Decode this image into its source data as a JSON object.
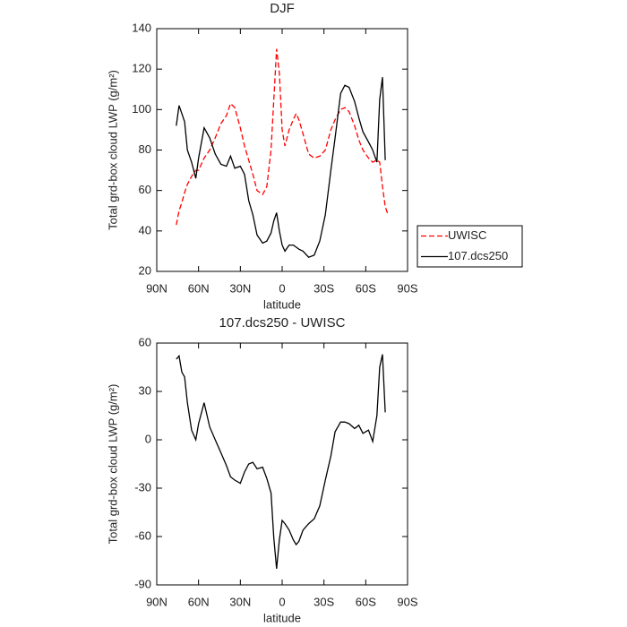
{
  "chart_data": [
    {
      "type": "line",
      "title": "DJF",
      "xlabel": "latitude",
      "ylabel": "Total grd-box cloud LWP (g/m²)",
      "x": [
        76,
        74,
        72,
        70,
        68,
        65,
        62,
        60,
        56,
        52,
        48,
        44,
        40,
        37,
        34,
        30,
        27,
        24,
        21,
        18,
        14,
        11,
        8,
        6,
        4,
        2,
        0,
        -2,
        -5,
        -8,
        -10,
        -12,
        -15,
        -19,
        -23,
        -27,
        -31,
        -35,
        -38,
        -42,
        -45,
        -48,
        -52,
        -55,
        -58,
        -62,
        -65,
        -68,
        -70,
        -72,
        -74,
        -76
      ],
      "series": [
        {
          "name": "UWISC",
          "color": "#ff0000",
          "dashed": true,
          "values": [
            43,
            50,
            54,
            59,
            63,
            67,
            70,
            70,
            76,
            80,
            86,
            93,
            97,
            103,
            101,
            91,
            82,
            75,
            68,
            60,
            58,
            62,
            80,
            105,
            130,
            118,
            90,
            82,
            90,
            95,
            98,
            95,
            88,
            78,
            76,
            77,
            80,
            90,
            95,
            100,
            101,
            99,
            92,
            85,
            80,
            76,
            74,
            75,
            74,
            62,
            52,
            48
          ]
        },
        {
          "name": "107.dcs250",
          "color": "#000000",
          "dashed": false,
          "values": [
            92,
            102,
            98,
            94,
            80,
            74,
            66,
            76,
            91,
            86,
            78,
            73,
            72,
            77,
            71,
            72,
            68,
            55,
            48,
            38,
            34,
            35,
            39,
            45,
            49,
            40,
            33,
            30,
            33,
            33,
            32,
            31,
            30,
            27,
            28,
            35,
            48,
            70,
            86,
            108,
            112,
            111,
            104,
            96,
            89,
            84,
            80,
            74,
            105,
            116,
            75,
            null
          ]
        }
      ],
      "xlim": [
        90,
        -90
      ],
      "xticks": [
        {
          "value": 90,
          "label": "90N"
        },
        {
          "value": 60,
          "label": "60N"
        },
        {
          "value": 30,
          "label": "30N"
        },
        0,
        {
          "value": -30,
          "label": "30S"
        },
        {
          "value": -60,
          "label": "60S"
        },
        {
          "value": -90,
          "label": "90S"
        }
      ],
      "ylim": [
        20,
        140
      ],
      "yticks": [
        20,
        40,
        60,
        80,
        100,
        120,
        140
      ],
      "legend": "right"
    },
    {
      "type": "line",
      "title": "107.dcs250 - UWISC",
      "xlabel": "latitude",
      "ylabel": "Total grd-box cloud LWP (g/m²)",
      "x": [
        76,
        74,
        72,
        70,
        68,
        65,
        62,
        60,
        56,
        52,
        48,
        44,
        40,
        37,
        34,
        30,
        27,
        24,
        21,
        18,
        14,
        11,
        8,
        6,
        4,
        2,
        0,
        -2,
        -5,
        -8,
        -10,
        -12,
        -15,
        -19,
        -23,
        -27,
        -31,
        -35,
        -38,
        -42,
        -45,
        -48,
        -52,
        -55,
        -58,
        -62,
        -65,
        -68,
        -70,
        -72,
        -74
      ],
      "series": [
        {
          "color": "#000000",
          "dashed": false,
          "values": [
            50,
            52,
            42,
            39,
            23,
            6,
            0,
            10,
            23,
            8,
            0,
            -8,
            -16,
            -23,
            -25,
            -27,
            -20,
            -15,
            -14,
            -18,
            -17,
            -24,
            -33,
            -61,
            -80,
            -62,
            -50,
            -52,
            -56,
            -62,
            -65,
            -63,
            -56,
            -52,
            -49,
            -41,
            -25,
            -10,
            5,
            11,
            11,
            10,
            7,
            9,
            4,
            6,
            -1,
            15,
            45,
            53,
            17
          ]
        }
      ],
      "xlim": [
        90,
        -90
      ],
      "xticks": [
        {
          "value": 90,
          "label": "90N"
        },
        {
          "value": 60,
          "label": "60N"
        },
        {
          "value": 30,
          "label": "30N"
        },
        0,
        {
          "value": -30,
          "label": "30S"
        },
        {
          "value": -60,
          "label": "60S"
        },
        {
          "value": -90,
          "label": "90S"
        }
      ],
      "ylim": [
        -90,
        60
      ],
      "yticks": [
        -90,
        -60,
        -30,
        0,
        30,
        60
      ]
    }
  ]
}
